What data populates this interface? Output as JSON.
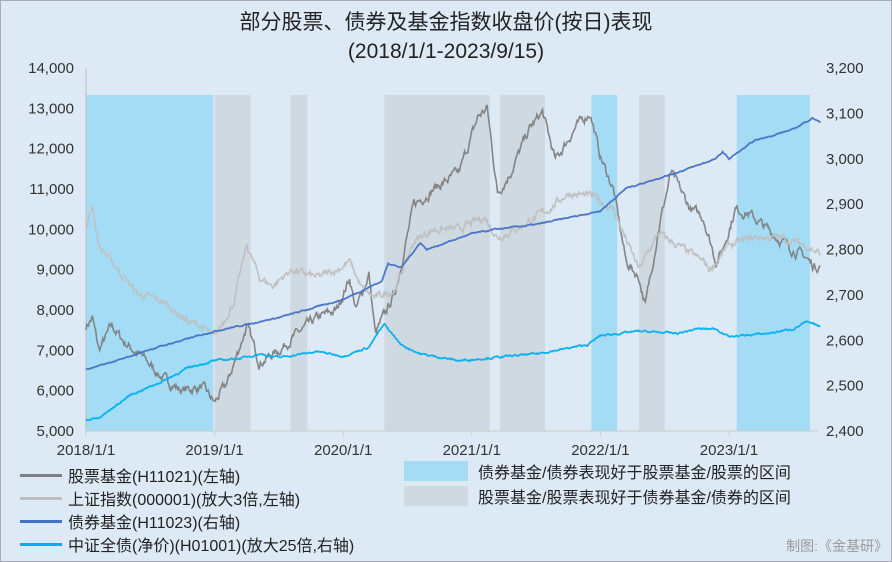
{
  "title_line1": "部分股票、债券及基金指数收盘价(按日)表现",
  "title_line2": "(2018/1/1-2023/9/15)",
  "credit": "制图:《金基研》",
  "chart_data": {
    "type": "line",
    "x_ticks": [
      "2018/1/1",
      "2019/1/1",
      "2020/1/1",
      "2021/1/1",
      "2022/1/1",
      "2023/1/1"
    ],
    "x_range": [
      2018.0,
      2023.71
    ],
    "y_left": {
      "range": [
        5000,
        14000
      ],
      "ticks": [
        "5,000",
        "6,000",
        "7,000",
        "8,000",
        "9,000",
        "10,000",
        "11,000",
        "12,000",
        "13,000",
        "14,000"
      ]
    },
    "y_right": {
      "range": [
        2400,
        3200
      ],
      "ticks": [
        "2,400",
        "2,500",
        "2,600",
        "2,700",
        "2,800",
        "2,900",
        "3,000",
        "3,100",
        "3,200"
      ]
    },
    "bands": [
      {
        "type": "bond",
        "start": 2018.0,
        "end": 2018.99
      },
      {
        "type": "stock",
        "start": 2019.0,
        "end": 2019.28
      },
      {
        "type": "stock",
        "start": 2019.59,
        "end": 2019.72
      },
      {
        "type": "stock",
        "start": 2020.32,
        "end": 2021.14
      },
      {
        "type": "stock",
        "start": 2021.22,
        "end": 2021.57
      },
      {
        "type": "bond",
        "start": 2021.93,
        "end": 2022.13
      },
      {
        "type": "stock",
        "start": 2022.3,
        "end": 2022.5
      },
      {
        "type": "bond",
        "start": 2023.06,
        "end": 2023.63
      }
    ],
    "band_legend": [
      {
        "type": "bond",
        "label": "债券基金/债券表现好于股票基金/股票的区间",
        "color": "#a4dcf5"
      },
      {
        "type": "stock",
        "label": "股票基金/股票表现好于债券基金/债券的区间",
        "color": "#cfd9e1"
      }
    ],
    "series": [
      {
        "name": "股票基金(H11021)(左轴)",
        "axis": "left",
        "color": "#7f7f7f",
        "noise": 180,
        "points": [
          [
            2018.0,
            7600
          ],
          [
            2018.05,
            7800
          ],
          [
            2018.1,
            7000
          ],
          [
            2018.2,
            7600
          ],
          [
            2018.3,
            7200
          ],
          [
            2018.45,
            6800
          ],
          [
            2018.6,
            6300
          ],
          [
            2018.75,
            6000
          ],
          [
            2018.9,
            6100
          ],
          [
            2019.0,
            5700
          ],
          [
            2019.1,
            6200
          ],
          [
            2019.25,
            7600
          ],
          [
            2019.35,
            6700
          ],
          [
            2019.5,
            7000
          ],
          [
            2019.6,
            7300
          ],
          [
            2019.8,
            7800
          ],
          [
            2019.95,
            8000
          ],
          [
            2020.05,
            8800
          ],
          [
            2020.1,
            8000
          ],
          [
            2020.2,
            8900
          ],
          [
            2020.25,
            7400
          ],
          [
            2020.4,
            8400
          ],
          [
            2020.55,
            10600
          ],
          [
            2020.7,
            11000
          ],
          [
            2020.9,
            11400
          ],
          [
            2021.05,
            12800
          ],
          [
            2021.12,
            13000
          ],
          [
            2021.2,
            10900
          ],
          [
            2021.3,
            11400
          ],
          [
            2021.45,
            12500
          ],
          [
            2021.55,
            12900
          ],
          [
            2021.65,
            11700
          ],
          [
            2021.8,
            12500
          ],
          [
            2021.92,
            12900
          ],
          [
            2022.0,
            11800
          ],
          [
            2022.1,
            11000
          ],
          [
            2022.2,
            9200
          ],
          [
            2022.3,
            8800
          ],
          [
            2022.35,
            8100
          ],
          [
            2022.45,
            10000
          ],
          [
            2022.55,
            11400
          ],
          [
            2022.7,
            10500
          ],
          [
            2022.8,
            10300
          ],
          [
            2022.9,
            9200
          ],
          [
            2022.95,
            9500
          ],
          [
            2023.05,
            10500
          ],
          [
            2023.15,
            10400
          ],
          [
            2023.3,
            10000
          ],
          [
            2023.45,
            9600
          ],
          [
            2023.6,
            9300
          ],
          [
            2023.65,
            9100
          ],
          [
            2023.71,
            9100
          ]
        ]
      },
      {
        "name": "上证指数(000001)(放大3倍,左轴)",
        "axis": "left",
        "color": "#bfbfbf",
        "noise": 140,
        "points": [
          [
            2018.0,
            10000
          ],
          [
            2018.05,
            10600
          ],
          [
            2018.1,
            9600
          ],
          [
            2018.25,
            9000
          ],
          [
            2018.4,
            8400
          ],
          [
            2018.6,
            8200
          ],
          [
            2018.8,
            7700
          ],
          [
            2018.9,
            7600
          ],
          [
            2019.0,
            7300
          ],
          [
            2019.15,
            8200
          ],
          [
            2019.25,
            9600
          ],
          [
            2019.35,
            8800
          ],
          [
            2019.45,
            8600
          ],
          [
            2019.6,
            9000
          ],
          [
            2019.8,
            8800
          ],
          [
            2019.95,
            9000
          ],
          [
            2020.05,
            9200
          ],
          [
            2020.15,
            8500
          ],
          [
            2020.25,
            8300
          ],
          [
            2020.4,
            8500
          ],
          [
            2020.55,
            9700
          ],
          [
            2020.7,
            10000
          ],
          [
            2020.9,
            10000
          ],
          [
            2021.1,
            10300
          ],
          [
            2021.2,
            9800
          ],
          [
            2021.4,
            10100
          ],
          [
            2021.6,
            10500
          ],
          [
            2021.75,
            10900
          ],
          [
            2021.95,
            10800
          ],
          [
            2022.1,
            10500
          ],
          [
            2022.3,
            9000
          ],
          [
            2022.45,
            9900
          ],
          [
            2022.6,
            9600
          ],
          [
            2022.8,
            9200
          ],
          [
            2022.85,
            9000
          ],
          [
            2023.0,
            9600
          ],
          [
            2023.2,
            9800
          ],
          [
            2023.4,
            9800
          ],
          [
            2023.6,
            9600
          ],
          [
            2023.71,
            9400
          ]
        ]
      },
      {
        "name": "债券基金(H11023)(右轴)",
        "axis": "right",
        "color": "#4472c4",
        "noise": 2,
        "points": [
          [
            2018.0,
            2535
          ],
          [
            2018.3,
            2560
          ],
          [
            2018.5,
            2580
          ],
          [
            2019.0,
            2620
          ],
          [
            2019.5,
            2650
          ],
          [
            2020.0,
            2690
          ],
          [
            2020.3,
            2730
          ],
          [
            2020.35,
            2770
          ],
          [
            2020.45,
            2760
          ],
          [
            2020.6,
            2815
          ],
          [
            2020.65,
            2800
          ],
          [
            2021.0,
            2835
          ],
          [
            2021.2,
            2845
          ],
          [
            2021.5,
            2855
          ],
          [
            2022.0,
            2885
          ],
          [
            2022.2,
            2935
          ],
          [
            2022.6,
            2970
          ],
          [
            2022.7,
            2980
          ],
          [
            2022.9,
            3000
          ],
          [
            2022.95,
            3015
          ],
          [
            2023.0,
            3000
          ],
          [
            2023.2,
            3040
          ],
          [
            2023.5,
            3065
          ],
          [
            2023.65,
            3090
          ],
          [
            2023.71,
            3080
          ]
        ]
      },
      {
        "name": "中证全债(净价)(H01001)(放大25倍,右轴)",
        "axis": "right",
        "color": "#00b0f0",
        "noise": 3,
        "points": [
          [
            2018.0,
            2425
          ],
          [
            2018.1,
            2428
          ],
          [
            2018.3,
            2470
          ],
          [
            2018.35,
            2480
          ],
          [
            2018.6,
            2510
          ],
          [
            2018.8,
            2540
          ],
          [
            2019.0,
            2555
          ],
          [
            2019.2,
            2560
          ],
          [
            2019.35,
            2570
          ],
          [
            2019.5,
            2562
          ],
          [
            2019.8,
            2575
          ],
          [
            2019.9,
            2570
          ],
          [
            2020.0,
            2565
          ],
          [
            2020.2,
            2585
          ],
          [
            2020.28,
            2620
          ],
          [
            2020.32,
            2635
          ],
          [
            2020.45,
            2590
          ],
          [
            2020.6,
            2570
          ],
          [
            2020.9,
            2555
          ],
          [
            2021.1,
            2560
          ],
          [
            2021.5,
            2570
          ],
          [
            2021.7,
            2580
          ],
          [
            2021.9,
            2590
          ],
          [
            2022.0,
            2610
          ],
          [
            2022.3,
            2620
          ],
          [
            2022.6,
            2615
          ],
          [
            2022.75,
            2625
          ],
          [
            2022.9,
            2625
          ],
          [
            2023.0,
            2608
          ],
          [
            2023.3,
            2615
          ],
          [
            2023.5,
            2625
          ],
          [
            2023.6,
            2640
          ],
          [
            2023.71,
            2630
          ]
        ]
      }
    ]
  }
}
